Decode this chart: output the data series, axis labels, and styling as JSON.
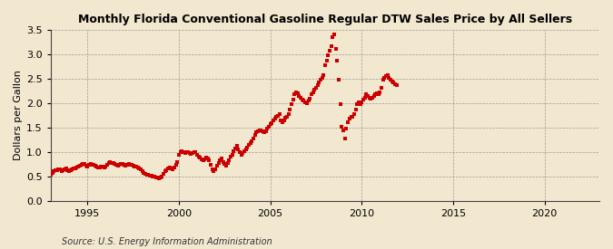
{
  "title": "Monthly Florida Conventional Gasoline Regular DTW Sales Price by All Sellers",
  "ylabel": "Dollars per Gallon",
  "source": "Source: U.S. Energy Information Administration",
  "bg_color": "#F2E8D0",
  "marker_color": "#CC0000",
  "marker": "s",
  "marker_size": 2.5,
  "xlim": [
    1993.0,
    2023.0
  ],
  "ylim": [
    0.0,
    3.5
  ],
  "yticks": [
    0.0,
    0.5,
    1.0,
    1.5,
    2.0,
    2.5,
    3.0,
    3.5
  ],
  "xticks": [
    1995,
    2000,
    2005,
    2010,
    2015,
    2020
  ],
  "data": [
    [
      1993.0,
      0.54
    ],
    [
      1993.083,
      0.57
    ],
    [
      1993.167,
      0.6
    ],
    [
      1993.25,
      0.62
    ],
    [
      1993.333,
      0.63
    ],
    [
      1993.417,
      0.65
    ],
    [
      1993.5,
      0.64
    ],
    [
      1993.583,
      0.61
    ],
    [
      1993.667,
      0.62
    ],
    [
      1993.75,
      0.65
    ],
    [
      1993.833,
      0.67
    ],
    [
      1993.917,
      0.63
    ],
    [
      1994.0,
      0.6
    ],
    [
      1994.083,
      0.62
    ],
    [
      1994.167,
      0.64
    ],
    [
      1994.25,
      0.66
    ],
    [
      1994.333,
      0.67
    ],
    [
      1994.417,
      0.68
    ],
    [
      1994.5,
      0.7
    ],
    [
      1994.583,
      0.72
    ],
    [
      1994.667,
      0.74
    ],
    [
      1994.75,
      0.76
    ],
    [
      1994.833,
      0.75
    ],
    [
      1994.917,
      0.72
    ],
    [
      1995.0,
      0.71
    ],
    [
      1995.083,
      0.73
    ],
    [
      1995.167,
      0.75
    ],
    [
      1995.25,
      0.74
    ],
    [
      1995.333,
      0.73
    ],
    [
      1995.417,
      0.72
    ],
    [
      1995.5,
      0.7
    ],
    [
      1995.583,
      0.68
    ],
    [
      1995.667,
      0.69
    ],
    [
      1995.75,
      0.71
    ],
    [
      1995.833,
      0.7
    ],
    [
      1995.917,
      0.68
    ],
    [
      1996.0,
      0.7
    ],
    [
      1996.083,
      0.74
    ],
    [
      1996.167,
      0.78
    ],
    [
      1996.25,
      0.79
    ],
    [
      1996.333,
      0.78
    ],
    [
      1996.417,
      0.77
    ],
    [
      1996.5,
      0.75
    ],
    [
      1996.583,
      0.73
    ],
    [
      1996.667,
      0.72
    ],
    [
      1996.75,
      0.74
    ],
    [
      1996.833,
      0.76
    ],
    [
      1996.917,
      0.75
    ],
    [
      1997.0,
      0.73
    ],
    [
      1997.083,
      0.72
    ],
    [
      1997.167,
      0.73
    ],
    [
      1997.25,
      0.75
    ],
    [
      1997.333,
      0.74
    ],
    [
      1997.417,
      0.73
    ],
    [
      1997.5,
      0.72
    ],
    [
      1997.583,
      0.71
    ],
    [
      1997.667,
      0.7
    ],
    [
      1997.75,
      0.69
    ],
    [
      1997.833,
      0.67
    ],
    [
      1997.917,
      0.64
    ],
    [
      1998.0,
      0.6
    ],
    [
      1998.083,
      0.57
    ],
    [
      1998.167,
      0.55
    ],
    [
      1998.25,
      0.54
    ],
    [
      1998.333,
      0.53
    ],
    [
      1998.417,
      0.52
    ],
    [
      1998.5,
      0.51
    ],
    [
      1998.583,
      0.5
    ],
    [
      1998.667,
      0.49
    ],
    [
      1998.75,
      0.48
    ],
    [
      1998.833,
      0.47
    ],
    [
      1998.917,
      0.46
    ],
    [
      1999.0,
      0.47
    ],
    [
      1999.083,
      0.5
    ],
    [
      1999.167,
      0.55
    ],
    [
      1999.25,
      0.6
    ],
    [
      1999.333,
      0.63
    ],
    [
      1999.417,
      0.67
    ],
    [
      1999.5,
      0.68
    ],
    [
      1999.583,
      0.66
    ],
    [
      1999.667,
      0.65
    ],
    [
      1999.75,
      0.68
    ],
    [
      1999.833,
      0.73
    ],
    [
      1999.917,
      0.8
    ],
    [
      2000.0,
      0.95
    ],
    [
      2000.083,
      1.0
    ],
    [
      2000.167,
      1.02
    ],
    [
      2000.25,
      1.0
    ],
    [
      2000.333,
      0.98
    ],
    [
      2000.417,
      0.99
    ],
    [
      2000.5,
      1.0
    ],
    [
      2000.583,
      0.98
    ],
    [
      2000.667,
      0.97
    ],
    [
      2000.75,
      0.98
    ],
    [
      2000.833,
      1.0
    ],
    [
      2000.917,
      0.99
    ],
    [
      2001.0,
      0.95
    ],
    [
      2001.083,
      0.9
    ],
    [
      2001.167,
      0.88
    ],
    [
      2001.25,
      0.85
    ],
    [
      2001.333,
      0.83
    ],
    [
      2001.417,
      0.85
    ],
    [
      2001.5,
      0.88
    ],
    [
      2001.583,
      0.87
    ],
    [
      2001.667,
      0.83
    ],
    [
      2001.75,
      0.73
    ],
    [
      2001.833,
      0.65
    ],
    [
      2001.917,
      0.6
    ],
    [
      2002.0,
      0.65
    ],
    [
      2002.083,
      0.72
    ],
    [
      2002.167,
      0.78
    ],
    [
      2002.25,
      0.83
    ],
    [
      2002.333,
      0.87
    ],
    [
      2002.417,
      0.8
    ],
    [
      2002.5,
      0.75
    ],
    [
      2002.583,
      0.72
    ],
    [
      2002.667,
      0.77
    ],
    [
      2002.75,
      0.83
    ],
    [
      2002.833,
      0.9
    ],
    [
      2002.917,
      0.95
    ],
    [
      2003.0,
      1.02
    ],
    [
      2003.083,
      1.08
    ],
    [
      2003.167,
      1.12
    ],
    [
      2003.25,
      1.05
    ],
    [
      2003.333,
      1.0
    ],
    [
      2003.417,
      0.95
    ],
    [
      2003.5,
      0.98
    ],
    [
      2003.583,
      1.02
    ],
    [
      2003.667,
      1.05
    ],
    [
      2003.75,
      1.1
    ],
    [
      2003.833,
      1.15
    ],
    [
      2003.917,
      1.18
    ],
    [
      2004.0,
      1.22
    ],
    [
      2004.083,
      1.28
    ],
    [
      2004.167,
      1.35
    ],
    [
      2004.25,
      1.4
    ],
    [
      2004.333,
      1.42
    ],
    [
      2004.417,
      1.45
    ],
    [
      2004.5,
      1.45
    ],
    [
      2004.583,
      1.42
    ],
    [
      2004.667,
      1.4
    ],
    [
      2004.75,
      1.42
    ],
    [
      2004.833,
      1.48
    ],
    [
      2004.917,
      1.52
    ],
    [
      2005.0,
      1.58
    ],
    [
      2005.083,
      1.6
    ],
    [
      2005.167,
      1.65
    ],
    [
      2005.25,
      1.68
    ],
    [
      2005.333,
      1.72
    ],
    [
      2005.417,
      1.75
    ],
    [
      2005.5,
      1.78
    ],
    [
      2005.583,
      1.65
    ],
    [
      2005.667,
      1.62
    ],
    [
      2005.75,
      1.65
    ],
    [
      2005.833,
      1.7
    ],
    [
      2005.917,
      1.72
    ],
    [
      2006.0,
      1.78
    ],
    [
      2006.083,
      1.88
    ],
    [
      2006.167,
      1.98
    ],
    [
      2006.25,
      2.08
    ],
    [
      2006.333,
      2.18
    ],
    [
      2006.417,
      2.22
    ],
    [
      2006.5,
      2.2
    ],
    [
      2006.583,
      2.15
    ],
    [
      2006.667,
      2.12
    ],
    [
      2006.75,
      2.08
    ],
    [
      2006.833,
      2.05
    ],
    [
      2006.917,
      2.02
    ],
    [
      2007.0,
      2.0
    ],
    [
      2007.083,
      2.05
    ],
    [
      2007.167,
      2.1
    ],
    [
      2007.25,
      2.18
    ],
    [
      2007.333,
      2.22
    ],
    [
      2007.417,
      2.28
    ],
    [
      2007.5,
      2.32
    ],
    [
      2007.583,
      2.38
    ],
    [
      2007.667,
      2.42
    ],
    [
      2007.75,
      2.48
    ],
    [
      2007.833,
      2.52
    ],
    [
      2007.917,
      2.58
    ],
    [
      2008.0,
      2.78
    ],
    [
      2008.083,
      2.88
    ],
    [
      2008.167,
      2.98
    ],
    [
      2008.25,
      3.08
    ],
    [
      2008.333,
      3.18
    ],
    [
      2008.417,
      3.35
    ],
    [
      2008.5,
      3.42
    ],
    [
      2008.583,
      3.12
    ],
    [
      2008.667,
      2.88
    ],
    [
      2008.75,
      2.48
    ],
    [
      2008.833,
      1.98
    ],
    [
      2008.917,
      1.52
    ],
    [
      2009.0,
      1.45
    ],
    [
      2009.083,
      1.28
    ],
    [
      2009.167,
      1.48
    ],
    [
      2009.25,
      1.62
    ],
    [
      2009.333,
      1.68
    ],
    [
      2009.417,
      1.72
    ],
    [
      2009.5,
      1.73
    ],
    [
      2009.583,
      1.78
    ],
    [
      2009.667,
      1.88
    ],
    [
      2009.75,
      1.98
    ],
    [
      2009.833,
      2.02
    ],
    [
      2009.917,
      1.98
    ],
    [
      2010.0,
      2.02
    ],
    [
      2010.083,
      2.08
    ],
    [
      2010.167,
      2.12
    ],
    [
      2010.25,
      2.18
    ],
    [
      2010.333,
      2.15
    ],
    [
      2010.417,
      2.12
    ],
    [
      2010.5,
      2.1
    ],
    [
      2010.583,
      2.12
    ],
    [
      2010.667,
      2.15
    ],
    [
      2010.75,
      2.18
    ],
    [
      2010.833,
      2.2
    ],
    [
      2010.917,
      2.18
    ],
    [
      2011.0,
      2.22
    ],
    [
      2011.083,
      2.32
    ],
    [
      2011.167,
      2.48
    ],
    [
      2011.25,
      2.52
    ],
    [
      2011.333,
      2.55
    ],
    [
      2011.417,
      2.58
    ],
    [
      2011.5,
      2.52
    ],
    [
      2011.583,
      2.48
    ],
    [
      2011.667,
      2.45
    ],
    [
      2011.75,
      2.42
    ],
    [
      2011.833,
      2.4
    ],
    [
      2011.917,
      2.38
    ]
  ]
}
